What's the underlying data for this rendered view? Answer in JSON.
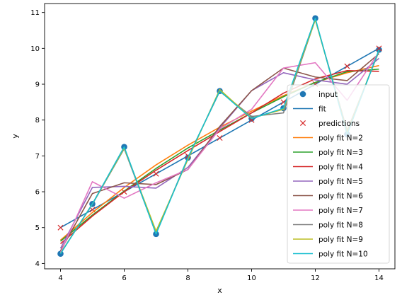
{
  "chart_data": {
    "type": "line",
    "title": "",
    "xlabel": "x",
    "ylabel": "y",
    "xlim": [
      3.5,
      14.5
    ],
    "ylim": [
      3.85,
      11.25
    ],
    "xticks": [
      4,
      6,
      8,
      10,
      12,
      14
    ],
    "yticks": [
      4,
      5,
      6,
      7,
      8,
      9,
      10,
      11
    ],
    "grid": false,
    "legend_position": "lower-right",
    "x": [
      4,
      5,
      6,
      7,
      8,
      9,
      10,
      11,
      12,
      13,
      14
    ],
    "series": [
      {
        "name": "input",
        "kind": "scatter",
        "color": "#1f77b4",
        "values": [
          4.27,
          5.66,
          7.25,
          4.82,
          6.95,
          8.81,
          8.04,
          8.33,
          10.84,
          7.6,
          9.96
        ]
      },
      {
        "name": "fit",
        "kind": "line",
        "color": "#1f77b4",
        "values": [
          5.0,
          5.5,
          6.0,
          6.5,
          7.0,
          7.5,
          8.0,
          8.5,
          9.0,
          9.5,
          10.0
        ]
      },
      {
        "name": "predictions",
        "kind": "marker-x",
        "color": "#d62728",
        "values": [
          5.0,
          5.5,
          6.0,
          6.5,
          7.0,
          7.5,
          8.0,
          8.5,
          9.0,
          9.5,
          10.0
        ]
      },
      {
        "name": "poly fit N=2",
        "kind": "line",
        "color": "#ff7f0e",
        "values": [
          4.65,
          5.42,
          6.12,
          6.75,
          7.3,
          7.8,
          8.25,
          8.68,
          9.05,
          9.32,
          9.52
        ]
      },
      {
        "name": "poly fit N=3",
        "kind": "line",
        "color": "#2ca02c",
        "values": [
          4.62,
          5.35,
          6.02,
          6.65,
          7.22,
          7.72,
          8.2,
          8.65,
          9.05,
          9.35,
          9.42
        ]
      },
      {
        "name": "poly fit N=4",
        "kind": "line",
        "color": "#d62728",
        "values": [
          4.55,
          5.32,
          6.0,
          6.6,
          7.15,
          7.68,
          8.2,
          8.75,
          9.15,
          9.38,
          9.36
        ]
      },
      {
        "name": "poly fit N=5",
        "kind": "line",
        "color": "#9467bd",
        "values": [
          4.42,
          6.12,
          6.15,
          6.1,
          6.68,
          7.78,
          8.82,
          9.32,
          9.12,
          9.0,
          9.72
        ]
      },
      {
        "name": "poly fit N=6",
        "kind": "line",
        "color": "#8c564b",
        "values": [
          4.35,
          5.95,
          6.25,
          6.2,
          6.62,
          7.82,
          8.82,
          9.45,
          9.2,
          9.1,
          9.85
        ]
      },
      {
        "name": "poly fit N=7",
        "kind": "line",
        "color": "#e377c2",
        "values": [
          4.3,
          6.28,
          5.82,
          6.25,
          6.62,
          7.75,
          8.3,
          9.45,
          9.6,
          8.55,
          9.9
        ]
      },
      {
        "name": "poly fit N=8",
        "kind": "line",
        "color": "#7f7f7f",
        "values": [
          4.28,
          5.65,
          7.2,
          4.85,
          6.95,
          8.8,
          8.1,
          8.2,
          10.8,
          7.7,
          9.92
        ]
      },
      {
        "name": "poly fit N=9",
        "kind": "line",
        "color": "#bcbd22",
        "values": [
          4.28,
          5.66,
          7.22,
          4.9,
          6.9,
          8.85,
          8.05,
          8.3,
          10.8,
          7.65,
          9.95
        ]
      },
      {
        "name": "poly fit N=10",
        "kind": "line",
        "color": "#17becf",
        "values": [
          4.27,
          5.66,
          7.25,
          4.82,
          6.95,
          8.81,
          8.04,
          8.33,
          10.84,
          7.6,
          9.96
        ]
      }
    ]
  }
}
